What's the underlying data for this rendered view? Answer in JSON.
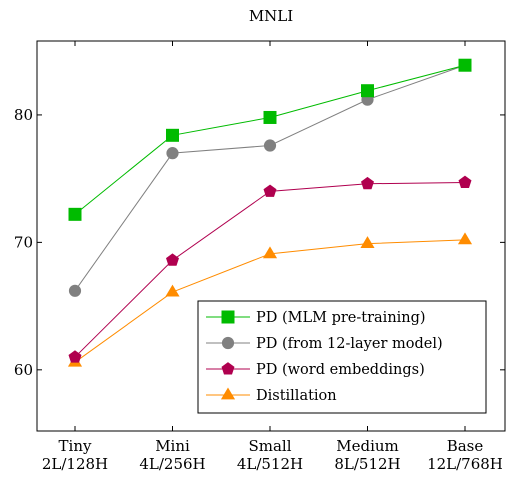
{
  "chart_data": {
    "type": "line",
    "title": "MNLI",
    "xlabel": "",
    "ylabel": "",
    "categories": [
      [
        "Tiny",
        "2L/128H"
      ],
      [
        "Mini",
        "4L/256H"
      ],
      [
        "Small",
        "4L/512H"
      ],
      [
        "Medium",
        "8L/512H"
      ],
      [
        "Base",
        "12L/768H"
      ]
    ],
    "ylim": [
      55.2,
      85.8
    ],
    "yticks": [
      60,
      70,
      80
    ],
    "grid": false,
    "legend_position": "bottom-right",
    "series": [
      {
        "name": "PD (MLM pre-training)",
        "color": "#00bb00",
        "marker": "square",
        "values": [
          72.2,
          78.4,
          79.8,
          81.9,
          83.9
        ]
      },
      {
        "name": "PD (from 12-layer model)",
        "color": "#808080",
        "marker": "circle",
        "values": [
          66.2,
          77.0,
          77.6,
          81.2,
          83.9
        ]
      },
      {
        "name": "PD (word embeddings)",
        "color": "#b0004f",
        "marker": "pentagon",
        "values": [
          61.0,
          68.6,
          74.0,
          74.6,
          74.7
        ]
      },
      {
        "name": "Distillation",
        "color": "#ff8c00",
        "marker": "triangle",
        "values": [
          60.6,
          66.1,
          69.1,
          69.9,
          70.2
        ]
      }
    ]
  }
}
